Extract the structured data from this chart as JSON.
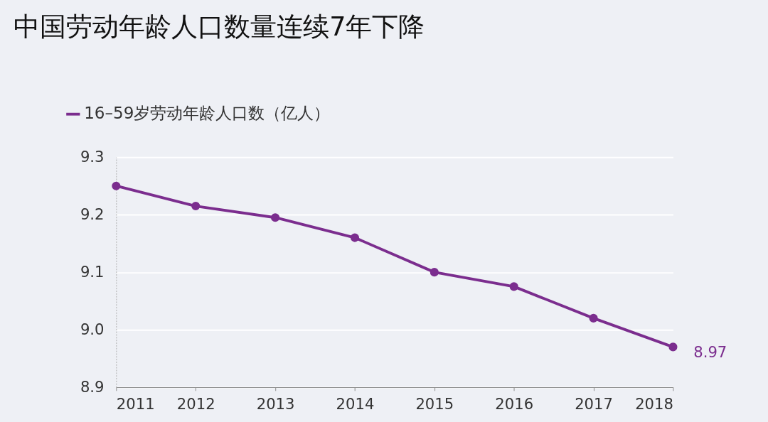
{
  "chart_data": {
    "type": "line",
    "title": "中国劳动年龄人口数量连续7年下降",
    "categories": [
      "2011",
      "2012",
      "2013",
      "2014",
      "2015",
      "2016",
      "2017",
      "2018"
    ],
    "series": [
      {
        "name": "16–59岁劳动年龄人口数（亿人）",
        "color": "#7b2d8e",
        "values": [
          9.25,
          9.215,
          9.195,
          9.16,
          9.1,
          9.075,
          9.02,
          8.97
        ]
      }
    ],
    "ylim": [
      8.9,
      9.3
    ],
    "yticks": [
      8.9,
      {
        "value": 9.0,
        "label": "9.0"
      },
      9.1,
      9.2,
      9.3
    ],
    "annotations": [
      {
        "text": "8.97",
        "x": "2018",
        "y": 8.97
      }
    ],
    "grid": "y",
    "legend": "top left",
    "marker": "circle",
    "line_style": "solid"
  }
}
